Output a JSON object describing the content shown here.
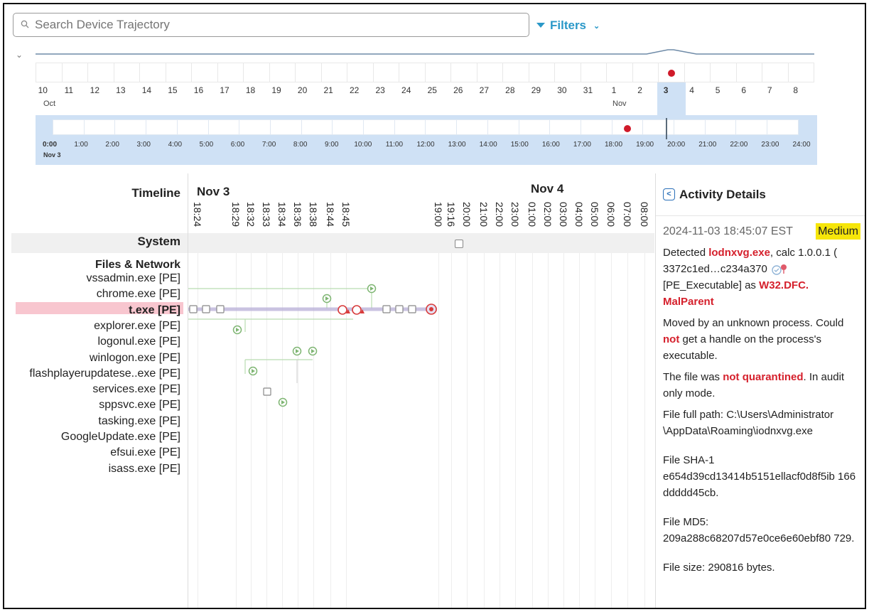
{
  "search": {
    "placeholder": "Search Device Trajectory"
  },
  "filters": {
    "label": "Filters"
  },
  "overview": {
    "days": [
      "10",
      "11",
      "12",
      "13",
      "14",
      "15",
      "16",
      "17",
      "18",
      "19",
      "20",
      "21",
      "22",
      "23",
      "24",
      "25",
      "26",
      "27",
      "28",
      "29",
      "30",
      "31",
      "1",
      "2",
      "3",
      "4",
      "5",
      "6",
      "7",
      "8"
    ],
    "month_oct": "Oct",
    "month_nov": "Nov",
    "selected_day": "3",
    "hours": [
      "0:00",
      "1:00",
      "2:00",
      "3:00",
      "4:00",
      "5:00",
      "6:00",
      "7:00",
      "8:00",
      "9:00",
      "10:00",
      "11:00",
      "12:00",
      "13:00",
      "14:00",
      "15:00",
      "16:00",
      "17:00",
      "18:00",
      "19:00",
      "20:00",
      "21:00",
      "22:00",
      "23:00",
      "24:00"
    ],
    "hour_sub": "Nov 3"
  },
  "timeline": {
    "label": "Timeline",
    "date1": "Nov 3",
    "date2": "Nov 4",
    "times": [
      "18:24",
      "18:29",
      "18:32",
      "18:33",
      "18:34",
      "18:36",
      "18:38",
      "18:44",
      "18:45",
      "19:00",
      "19:16",
      "20:00",
      "21:00",
      "22:00",
      "23:00",
      "01:00",
      "02:00",
      "03:00",
      "04:00",
      "05:00",
      "06:00",
      "07:00",
      "08:00"
    ]
  },
  "system_label": "System",
  "files_label": "Files & Network",
  "processes": [
    "vssadmin.exe [PE]",
    "chrome.exe [PE]",
    "t.exe [PE]",
    "explorer.exe [PE]",
    "logonul.exe [PE]",
    "winlogon.exe [PE]",
    "flashplayerupdatese..exe [PE]",
    "services.exe [PE]",
    "sppsvc.exe [PE]",
    "tasking.exe [PE]",
    "GoogleUpdate.exe [PE]",
    "efsui.exe [PE]",
    "isass.exe [PE]"
  ],
  "details": {
    "title": "Activity Details",
    "timestamp": "2024-11-03 18:45:07 EST",
    "severity": "Medium",
    "detected_prefix": "Detected ",
    "detected_file": "lodnxvg.exe",
    "detected_suffix": ", calc 1.0.0.1 (",
    "hash_short": "3372c1ed…c234a370",
    "type_prefix": "[PE_Executable] as ",
    "malware_name": "W32.DFC. MalParent",
    "moved_1": "Moved by an unknown process. Could ",
    "moved_not": "not",
    "moved_2": " get a handle on the process's executable.",
    "q_1": "The file was ",
    "q_not": "not quarantined",
    "q_2": ". In audit only mode.",
    "path_label": "File full path: C:\\Users\\Administrator \\AppData\\Roaming\\iodnxvg.exe",
    "sha_label": "File SHA-1",
    "sha_value": "e654d39cd13414b5151ellacf0d8f5ib 166ddddd45cb.",
    "md5_label": "File MD5:",
    "md5_value": "209a288c68207d57e0ce6e60ebf80 729.",
    "size_label": "File size: 290816 bytes."
  },
  "colors": {
    "accent": "#2a98c8",
    "danger": "#d5202c",
    "highlight": "#f6e60a",
    "selection": "#f8c6cf",
    "band": "#cfe1f5"
  }
}
